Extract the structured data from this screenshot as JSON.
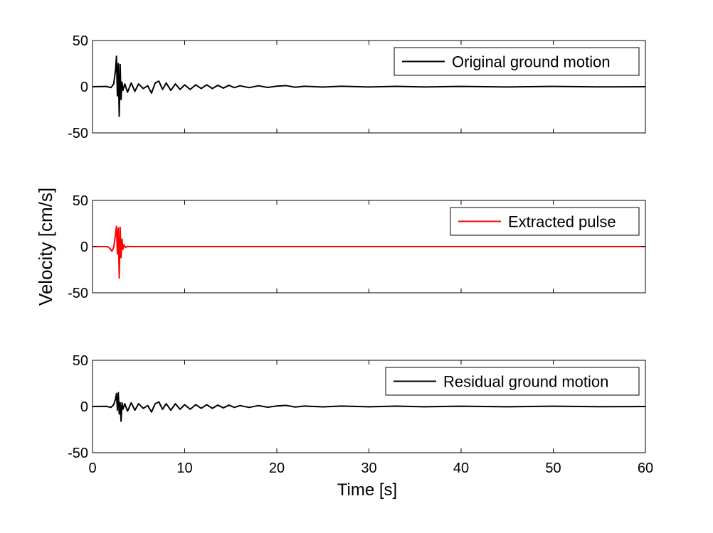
{
  "chart_data": {
    "type": "line",
    "xlabel": "Time [s]",
    "ylabel": "Velocity [cm/s]",
    "xlim": [
      0,
      60
    ],
    "xticks": [
      0,
      10,
      20,
      30,
      40,
      50,
      60
    ],
    "ylim": [
      -50,
      50
    ],
    "yticks": [
      -50,
      0,
      50
    ],
    "grid": false,
    "panels": [
      {
        "legend": "Original ground motion",
        "legend_position": "top-right",
        "color": "#000000",
        "x": [
          0,
          1.5,
          2.0,
          2.3,
          2.5,
          2.6,
          2.7,
          2.8,
          2.9,
          3.0,
          3.1,
          3.2,
          3.3,
          3.5,
          3.8,
          4.2,
          4.6,
          5.0,
          5.5,
          6.0,
          6.4,
          6.8,
          7.2,
          7.6,
          8.0,
          8.5,
          9.0,
          9.5,
          10.0,
          10.6,
          11.2,
          11.8,
          12.4,
          13.0,
          13.6,
          14.2,
          14.8,
          15.4,
          16.0,
          17.0,
          18.0,
          19.0,
          20.0,
          21.0,
          22.0,
          23.0,
          25.0,
          27.0,
          30.0,
          33.0,
          36.0,
          40.0,
          45.0,
          50.0,
          55.0,
          60.0
        ],
        "y": [
          0,
          0.3,
          -1,
          3,
          18,
          33,
          -10,
          25,
          -32,
          24,
          -14,
          5,
          -4,
          3,
          -6,
          4,
          -5,
          3,
          -2,
          1,
          -7,
          4,
          6,
          -3,
          4,
          -4,
          3,
          -3,
          2,
          -3,
          2,
          -2,
          2,
          -2,
          1.5,
          -1.5,
          1.5,
          -1,
          1,
          -1,
          1,
          -0.8,
          0.6,
          1.2,
          -0.6,
          0.5,
          -0.4,
          0.5,
          -0.3,
          0.4,
          -0.3,
          0.3,
          -0.3,
          0.3,
          -0.2,
          0
        ]
      },
      {
        "legend": "Extracted pulse",
        "legend_position": "top-right",
        "color": "#ff0000",
        "x": [
          0,
          1.6,
          1.9,
          2.1,
          2.3,
          2.45,
          2.6,
          2.7,
          2.8,
          2.9,
          3.0,
          3.1,
          3.2,
          3.3,
          3.4,
          3.6,
          3.8,
          4.0,
          60.0
        ],
        "y": [
          0,
          0,
          -2,
          -5,
          -1,
          10,
          22,
          -8,
          20,
          -34,
          21,
          -12,
          8,
          -3,
          2,
          -1,
          0.3,
          0,
          0
        ]
      },
      {
        "legend": "Residual ground motion",
        "legend_position": "top-right",
        "color": "#000000",
        "x": [
          0,
          1.5,
          2.0,
          2.3,
          2.5,
          2.6,
          2.7,
          2.8,
          2.9,
          3.0,
          3.1,
          3.2,
          3.3,
          3.5,
          3.8,
          4.2,
          4.6,
          5.0,
          5.5,
          6.0,
          6.4,
          6.8,
          7.2,
          7.6,
          8.0,
          8.5,
          9.0,
          9.5,
          10.0,
          10.6,
          11.2,
          11.8,
          12.4,
          13.0,
          13.6,
          14.2,
          14.8,
          15.4,
          16.0,
          17.0,
          18.0,
          19.0,
          20.0,
          21.0,
          22.0,
          23.0,
          25.0,
          27.0,
          30.0,
          33.0,
          36.0,
          40.0,
          45.0,
          50.0,
          55.0,
          60.0
        ],
        "y": [
          0,
          0.2,
          -1,
          2,
          8,
          14,
          -4,
          15,
          -8,
          4,
          -16,
          4,
          -3,
          3,
          -5,
          4,
          -4,
          3,
          -2,
          1,
          -6,
          3,
          5,
          -3,
          3,
          -4,
          3,
          -3,
          2,
          -3,
          2,
          -2,
          2,
          -2,
          1.5,
          -1.5,
          1.5,
          -1,
          1,
          -1,
          1,
          -0.8,
          0.6,
          1.2,
          -0.6,
          0.5,
          -0.4,
          0.5,
          -0.3,
          0.4,
          -0.3,
          0.3,
          -0.3,
          0.3,
          -0.2,
          0
        ]
      }
    ]
  }
}
